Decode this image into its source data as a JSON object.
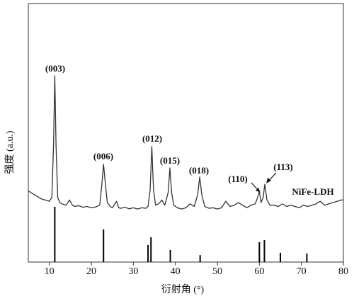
{
  "chart_data": {
    "type": "line",
    "xlabel": "衍射角 (°)",
    "ylabel": "强度 (a.u.)",
    "xlim": [
      5,
      80
    ],
    "xticks": [
      10,
      20,
      30,
      40,
      50,
      60,
      70,
      80
    ],
    "ylim": [
      0,
      100
    ],
    "series": [
      {
        "name": "NiFe-LDH",
        "type": "line",
        "color": "#333333",
        "x": [
          5,
          6,
          7,
          8,
          9,
          10,
          10.6,
          11,
          11.3,
          11.6,
          12,
          12.5,
          13,
          14,
          14.8,
          15.5,
          16,
          17,
          18,
          19,
          20,
          21,
          22,
          22.5,
          22.9,
          23.3,
          23.8,
          24.5,
          25,
          26,
          26.5,
          27,
          28,
          29,
          30,
          31,
          32,
          33,
          33.5,
          34,
          34.4,
          34.8,
          35.3,
          36,
          36.8,
          37.5,
          38.3,
          38.7,
          39.1,
          39.6,
          40.5,
          41.5,
          42.5,
          43.5,
          44.5,
          45.3,
          45.8,
          46.3,
          47,
          48,
          49,
          50,
          51,
          52,
          53,
          54,
          55,
          56,
          57,
          58,
          59,
          59.6,
          60,
          60.4,
          60.9,
          61.3,
          61.8,
          62.5,
          63.5,
          64.5,
          65.5,
          66.5,
          67.5,
          68.5,
          69.5,
          70.5,
          71.5,
          72.5,
          73.5,
          74.5,
          75.5,
          76.5,
          77.5,
          78.5,
          79.5,
          80
        ],
        "values": [
          27.5,
          26.5,
          25.5,
          24.5,
          24,
          23.5,
          25,
          45,
          72,
          45,
          25,
          23,
          22.5,
          22,
          24,
          22,
          21.5,
          21.8,
          21.2,
          21.5,
          21,
          21.3,
          22,
          30,
          37.8,
          31,
          23,
          21.5,
          21,
          23.5,
          21,
          20.8,
          21.2,
          20.6,
          21,
          20.5,
          21,
          20.8,
          21.5,
          28,
          44.7,
          28,
          22,
          22.5,
          24,
          22,
          27,
          36.4,
          27,
          22,
          21,
          20.5,
          21,
          22.5,
          21.5,
          26,
          32.9,
          26,
          21.5,
          20.8,
          21,
          20.5,
          21,
          23.5,
          21.5,
          22,
          23,
          22,
          21,
          22,
          22.5,
          25,
          27.4,
          23,
          25,
          30.1,
          24,
          22,
          22,
          21.5,
          22.5,
          21.5,
          22,
          21.5,
          21,
          22,
          21.5,
          22,
          22.5,
          23.5,
          22,
          22.5,
          23,
          23.5,
          24,
          24
        ]
      },
      {
        "type": "stem",
        "color": "#000000",
        "x": [
          11.3,
          22.9,
          33.5,
          34.2,
          38.8,
          45.9,
          60.0,
          61.2,
          65.0,
          71.3
        ],
        "values": [
          21.4,
          12.6,
          6.6,
          9.6,
          4.7,
          2.7,
          7.7,
          8.5,
          3.6,
          3.3
        ]
      }
    ],
    "annotations": [
      "(003)",
      "(006)",
      "(012)",
      "(015)",
      "(018)",
      "(110)",
      "(113)"
    ]
  }
}
